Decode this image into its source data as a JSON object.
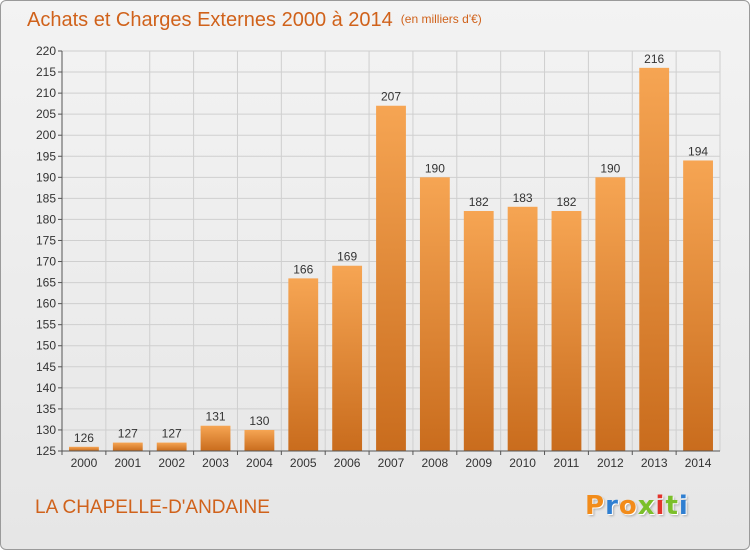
{
  "header": {
    "title": "Achats et Charges Externes 2000 à 2014",
    "unit": "(en milliers d'€)"
  },
  "footer": {
    "place": "LA CHAPELLE-D'ANDAINE",
    "logo_letters": [
      "P",
      "r",
      "o",
      "x",
      "i",
      "t",
      "i"
    ],
    "logo_colors": [
      "#f28c1a",
      "#2f7fd1",
      "#f28c1a",
      "#7bbf2a",
      "#e2332b",
      "#7bbf2a",
      "#2f7fd1"
    ]
  },
  "colors": {
    "bar_top": "#f6a553",
    "bar_bottom": "#c96c1d",
    "title": "#d0621b",
    "grid": "#cfcfcf"
  },
  "chart_data": {
    "type": "bar",
    "title": "Achats et Charges Externes 2000 à 2014",
    "xlabel": "",
    "ylabel": "",
    "categories": [
      "2000",
      "2001",
      "2002",
      "2003",
      "2004",
      "2005",
      "2006",
      "2007",
      "2008",
      "2009",
      "2010",
      "2011",
      "2012",
      "2013",
      "2014"
    ],
    "values": [
      126,
      127,
      127,
      131,
      130,
      166,
      169,
      207,
      190,
      182,
      183,
      182,
      190,
      216,
      194
    ],
    "ylim": [
      125,
      220
    ],
    "yticks": [
      125,
      130,
      135,
      140,
      145,
      150,
      155,
      160,
      165,
      170,
      175,
      180,
      185,
      190,
      195,
      200,
      205,
      210,
      215,
      220
    ],
    "grid": true
  }
}
